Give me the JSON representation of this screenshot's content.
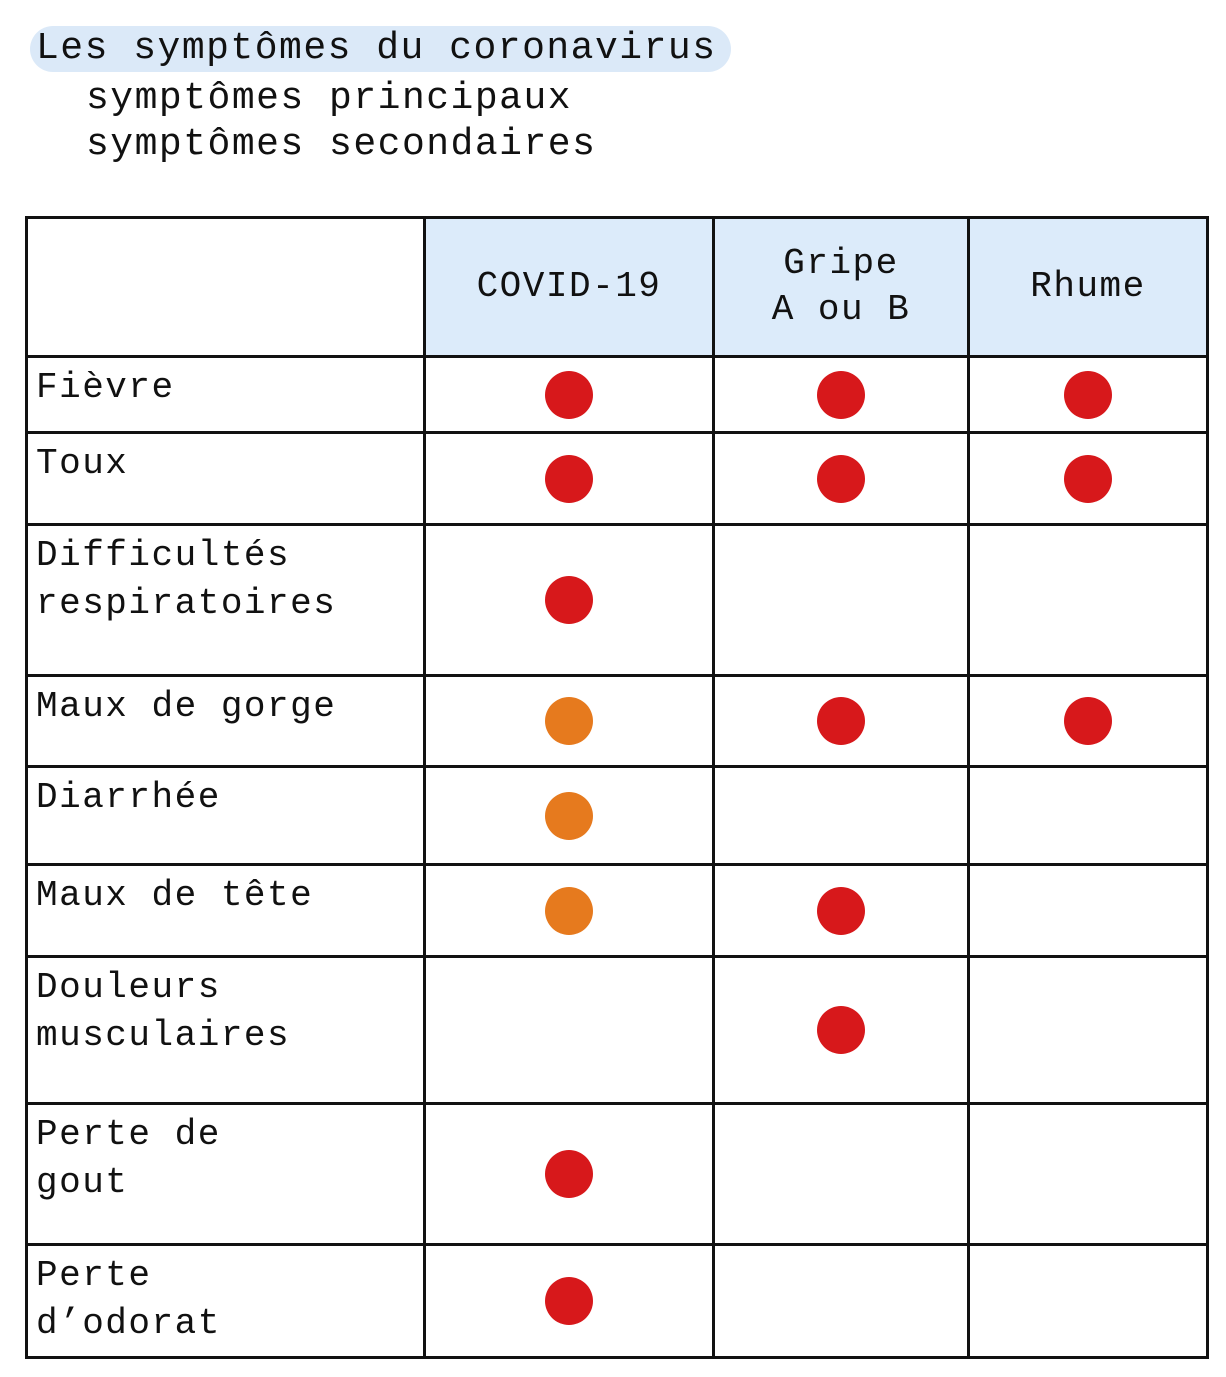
{
  "header": {
    "title": "Les symptômes du coronavirus",
    "legend": [
      {
        "label": "symptômes principaux",
        "level": "principal"
      },
      {
        "label": "symptômes secondaires",
        "level": "secondaire"
      }
    ]
  },
  "colors": {
    "principal": "#d7181b",
    "secondaire": "#e67a1e",
    "header_fill": "#dcebfa",
    "title_highlight": "#dbe9f8"
  },
  "table": {
    "columns": [
      "COVID-19",
      "Gripe A ou B",
      "Rhume"
    ],
    "rows": [
      {
        "label": "Fièvre",
        "marks": [
          "principal",
          "principal",
          "principal"
        ]
      },
      {
        "label": "Toux",
        "marks": [
          "principal",
          "principal",
          "principal"
        ]
      },
      {
        "label": "Difficultés\nrespiratoires",
        "marks": [
          "principal",
          "",
          ""
        ]
      },
      {
        "label": "Maux de gorge",
        "marks": [
          "secondaire",
          "principal",
          "principal"
        ]
      },
      {
        "label": "Diarrhée",
        "marks": [
          "secondaire",
          "",
          ""
        ]
      },
      {
        "label": "Maux de tête",
        "marks": [
          "secondaire",
          "principal",
          ""
        ]
      },
      {
        "label": "Douleurs\nmusculaires",
        "marks": [
          "",
          "principal",
          ""
        ]
      },
      {
        "label": "Perte de\ngout",
        "marks": [
          "principal",
          "",
          ""
        ]
      },
      {
        "label": "Perte\nd’odorat",
        "marks": [
          "principal",
          "",
          ""
        ]
      }
    ]
  }
}
